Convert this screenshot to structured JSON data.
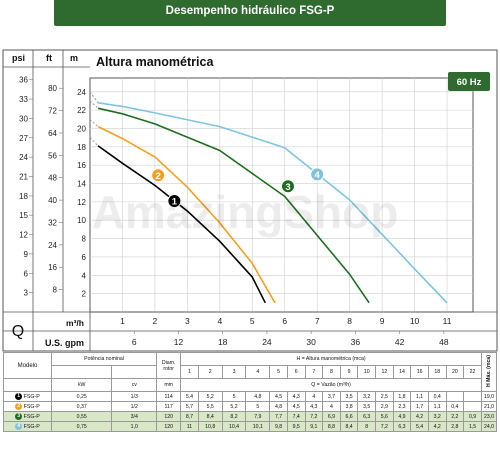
{
  "page_title": "Desempenho hidráulico FSG-P",
  "watermark": "AmazingShop",
  "chart_data": {
    "type": "line",
    "title": "Altura manométrica",
    "frequency_badge": "60 Hz",
    "axis_headers": {
      "psi": "psi",
      "ft": "ft",
      "m": "m"
    },
    "psi_ticks": [
      3,
      6,
      9,
      12,
      15,
      18,
      21,
      24,
      27,
      30,
      33,
      36
    ],
    "ft_ticks": [
      8,
      16,
      24,
      32,
      40,
      48,
      56,
      64,
      72,
      80
    ],
    "m_ticks": [
      2,
      4,
      6,
      8,
      10,
      12,
      14,
      16,
      18,
      20,
      22,
      24
    ],
    "xlabel_m3h": "m³/h",
    "xlabel_gpm": "U.S. gpm",
    "q_label": "Q",
    "m3h_ticks": [
      1,
      2,
      3,
      4,
      5,
      6,
      7,
      8,
      9,
      10,
      11
    ],
    "gpm_ticks": [
      6,
      12,
      18,
      24,
      30,
      36,
      42,
      48
    ],
    "xlim": [
      0,
      11.8
    ],
    "ylim": [
      0,
      25.5
    ],
    "series": [
      {
        "name": "1",
        "color": "#000000",
        "points": [
          [
            0.25,
            18.1
          ],
          [
            1,
            16.2
          ],
          [
            2,
            13.8
          ],
          [
            3,
            11.0
          ],
          [
            4,
            7.7
          ],
          [
            5,
            3.8
          ],
          [
            5.4,
            1.0
          ]
        ],
        "dashed_start": [
          [
            0,
            19.0
          ],
          [
            0.25,
            18.1
          ]
        ],
        "label_at": [
          2.6,
          12.1
        ]
      },
      {
        "name": "2",
        "color": "#f0a020",
        "points": [
          [
            0.25,
            20.2
          ],
          [
            1,
            18.9
          ],
          [
            2,
            16.9
          ],
          [
            3,
            13.6
          ],
          [
            4,
            9.7
          ],
          [
            5,
            5.3
          ],
          [
            5.7,
            1.0
          ]
        ],
        "dashed_start": [
          [
            0,
            21.0
          ],
          [
            0.25,
            20.2
          ]
        ],
        "label_at": [
          2.1,
          14.9
        ]
      },
      {
        "name": "3",
        "color": "#1e6e1e",
        "points": [
          [
            0.25,
            22.2
          ],
          [
            1,
            21.6
          ],
          [
            2,
            20.5
          ],
          [
            4,
            17.6
          ],
          [
            6,
            12.6
          ],
          [
            8,
            4.1
          ],
          [
            8.6,
            1.0
          ]
        ],
        "dashed_start": [
          [
            0,
            23.0
          ],
          [
            0.25,
            22.2
          ]
        ],
        "label_at": [
          6.1,
          13.7
        ]
      },
      {
        "name": "4",
        "color": "#7ec4e0",
        "points": [
          [
            0.25,
            22.8
          ],
          [
            1,
            22.4
          ],
          [
            2,
            21.7
          ],
          [
            4,
            20.2
          ],
          [
            6,
            17.9
          ],
          [
            8,
            12.2
          ],
          [
            10,
            4.7
          ],
          [
            11,
            1.0
          ]
        ],
        "dashed_start": [
          [
            0,
            24.0
          ],
          [
            0.25,
            22.8
          ]
        ],
        "label_at": [
          7.0,
          15.0
        ]
      }
    ]
  },
  "table": {
    "col_modelo": "Modelo",
    "col_potencia": "Potência nominal",
    "col_diam": "Diam. rotor",
    "col_h": "H = Altura manométrica (mca)",
    "col_q": "Q = Vazão (m³/h)",
    "col_hmax": "H Máx. (mca)",
    "unit_kw": "kW",
    "unit_cv": "cv",
    "unit_mm": "mm",
    "h_values": [
      "1",
      "2",
      "3",
      "4",
      "5",
      "6",
      "7",
      "8",
      "9",
      "10",
      "12",
      "14",
      "16",
      "18",
      "20",
      "22"
    ],
    "rows": [
      {
        "num": "1",
        "badge_color": "#000000",
        "model": "FSG-P",
        "kw": "0,25",
        "cv": "1/3",
        "mm": "114",
        "q": [
          "5,4",
          "5,2",
          "5",
          "4,8",
          "4,5",
          "4,3",
          "4",
          "3,7",
          "3,5",
          "3,2",
          "2,5",
          "1,8",
          "1,1",
          "0,4",
          "",
          ""
        ],
        "hmax": "19,0"
      },
      {
        "num": "2",
        "badge_color": "#f0a020",
        "model": "FSG-P",
        "kw": "0,37",
        "cv": "1/2",
        "mm": "117",
        "q": [
          "5,7",
          "5,5",
          "5,2",
          "5",
          "4,8",
          "4,5",
          "4,3",
          "4",
          "3,8",
          "3,5",
          "2,9",
          "2,3",
          "1,7",
          "1,1",
          "0,4",
          ""
        ],
        "hmax": "21,0"
      },
      {
        "num": "3",
        "badge_color": "#1e6e1e",
        "model": "FSG-P",
        "kw": "0,55",
        "cv": "3/4",
        "mm": "120",
        "q": [
          "8,7",
          "8,4",
          "8,2",
          "7,9",
          "7,7",
          "7,4",
          "7,2",
          "6,9",
          "6,6",
          "6,3",
          "5,6",
          "4,9",
          "4,2",
          "3,2",
          "2,2",
          "0,9"
        ],
        "hmax": "23,0"
      },
      {
        "num": "4",
        "badge_color": "#7ec4e0",
        "model": "FSG-P",
        "kw": "0,75",
        "cv": "1,0",
        "mm": "120",
        "q": [
          "11",
          "10,8",
          "10,4",
          "10,1",
          "9,8",
          "9,5",
          "9,1",
          "8,8",
          "8,4",
          "8",
          "7,2",
          "6,3",
          "5,4",
          "4,2",
          "2,8",
          "1,5"
        ],
        "hmax": "24,0"
      }
    ]
  }
}
